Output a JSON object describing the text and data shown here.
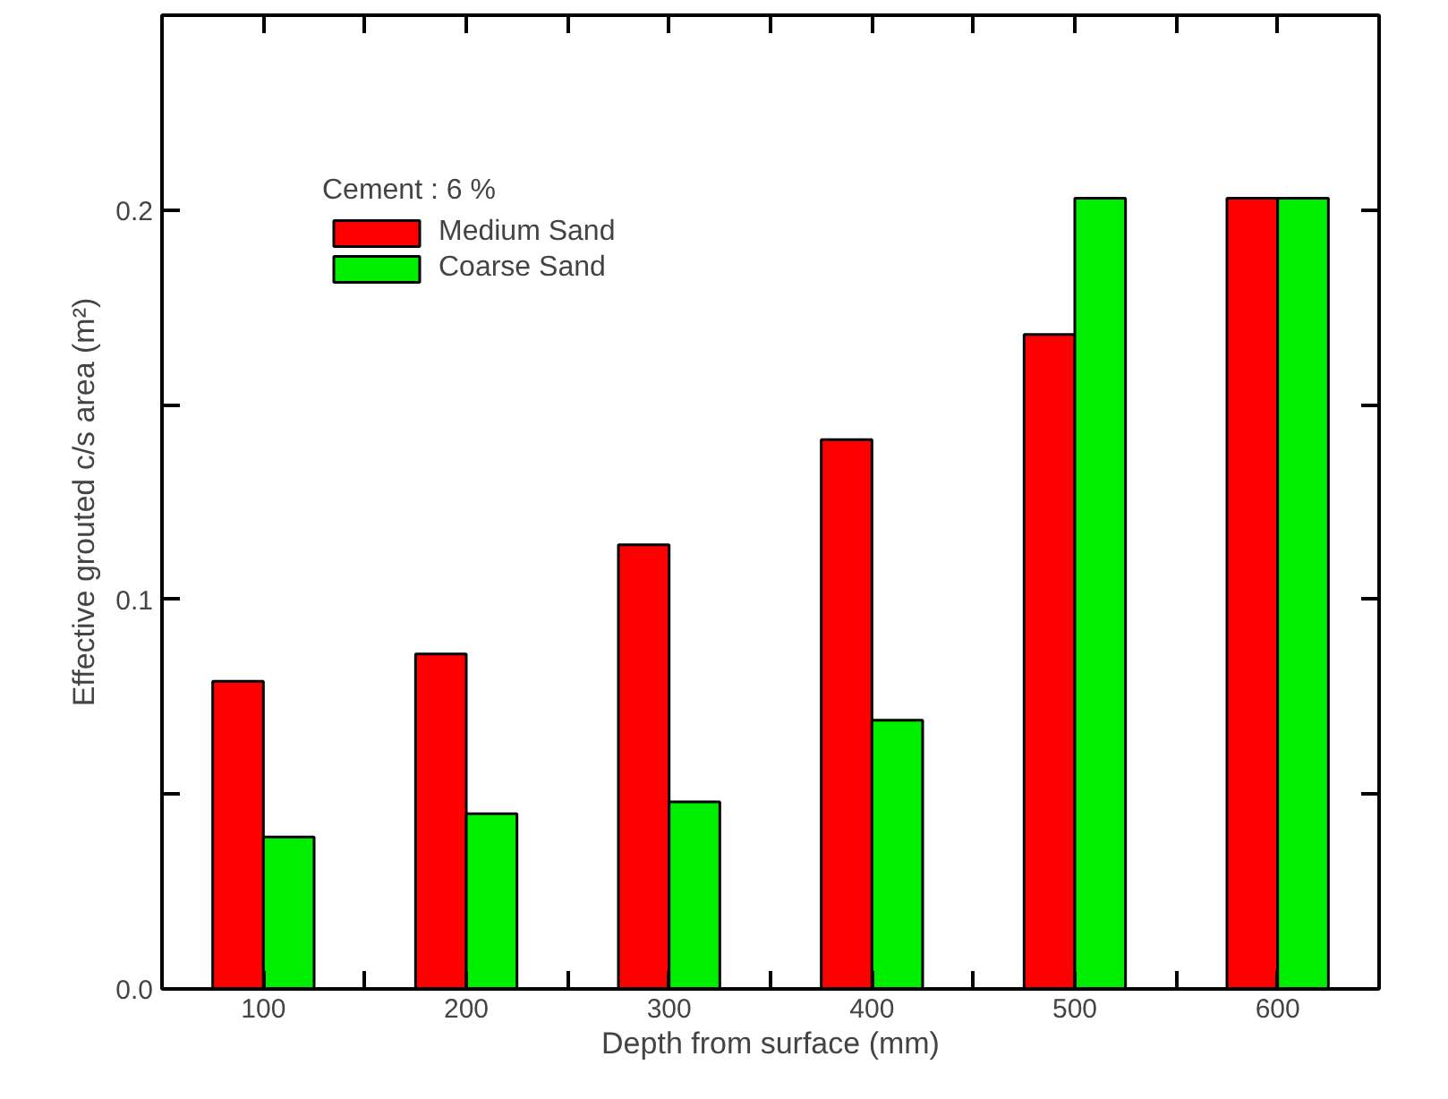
{
  "chart_data": {
    "type": "bar",
    "xlabel": "Depth from surface (mm)",
    "ylabel": "Effective grouted c/s area (m²)",
    "legend_title": "Cement : 6 %",
    "x": [
      100,
      200,
      300,
      400,
      500,
      600
    ],
    "series": [
      {
        "name": "Medium Sand",
        "color": "#ff0000",
        "values": [
          0.079,
          0.086,
          0.114,
          0.141,
          0.168,
          0.203
        ]
      },
      {
        "name": "Coarse Sand",
        "color": "#00ee00",
        "values": [
          0.039,
          0.045,
          0.048,
          0.069,
          0.203,
          0.203
        ]
      }
    ],
    "xlim": [
      50,
      650
    ],
    "ylim": [
      0,
      0.25
    ],
    "xticks": [
      100,
      {
        "value": 150,
        "label": null
      },
      200,
      {
        "value": 250,
        "label": null
      },
      300,
      {
        "value": 350,
        "label": null
      },
      400,
      {
        "value": 450,
        "label": null
      },
      500,
      {
        "value": 550,
        "label": null
      },
      600
    ],
    "yticks": [
      {
        "value": 0,
        "label": "0.0"
      },
      {
        "value": 0.05,
        "label": null
      },
      0.1,
      {
        "value": 0.15,
        "label": null
      },
      0.2
    ],
    "grid": false,
    "legend": "top left"
  }
}
